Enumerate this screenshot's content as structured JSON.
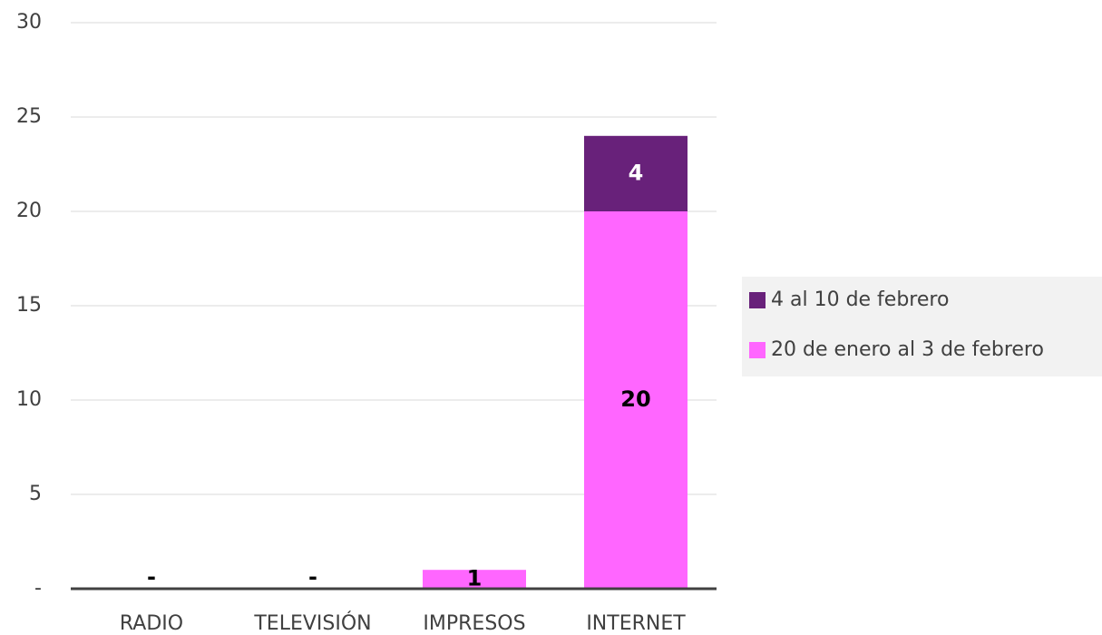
{
  "chart_data": {
    "type": "stacked-bar",
    "categories": [
      "RADIO",
      "TELEVISIÓN",
      "IMPRESOS",
      "INTERNET"
    ],
    "series": [
      {
        "name": "20 de enero al 3 de febrero",
        "color": "#ff66ff",
        "values": [
          0,
          0,
          1,
          20
        ],
        "value_labels": [
          "-",
          "-",
          "1",
          "20"
        ]
      },
      {
        "name": "4 al 10 de febrero",
        "color": "#68217a",
        "values": [
          null,
          null,
          null,
          4
        ]
      }
    ],
    "ylim": [
      0,
      30
    ],
    "yticks": [
      {
        "value": 0,
        "label": "-"
      },
      5,
      10,
      15,
      20,
      25,
      30
    ],
    "grid": true,
    "legend": "right"
  }
}
